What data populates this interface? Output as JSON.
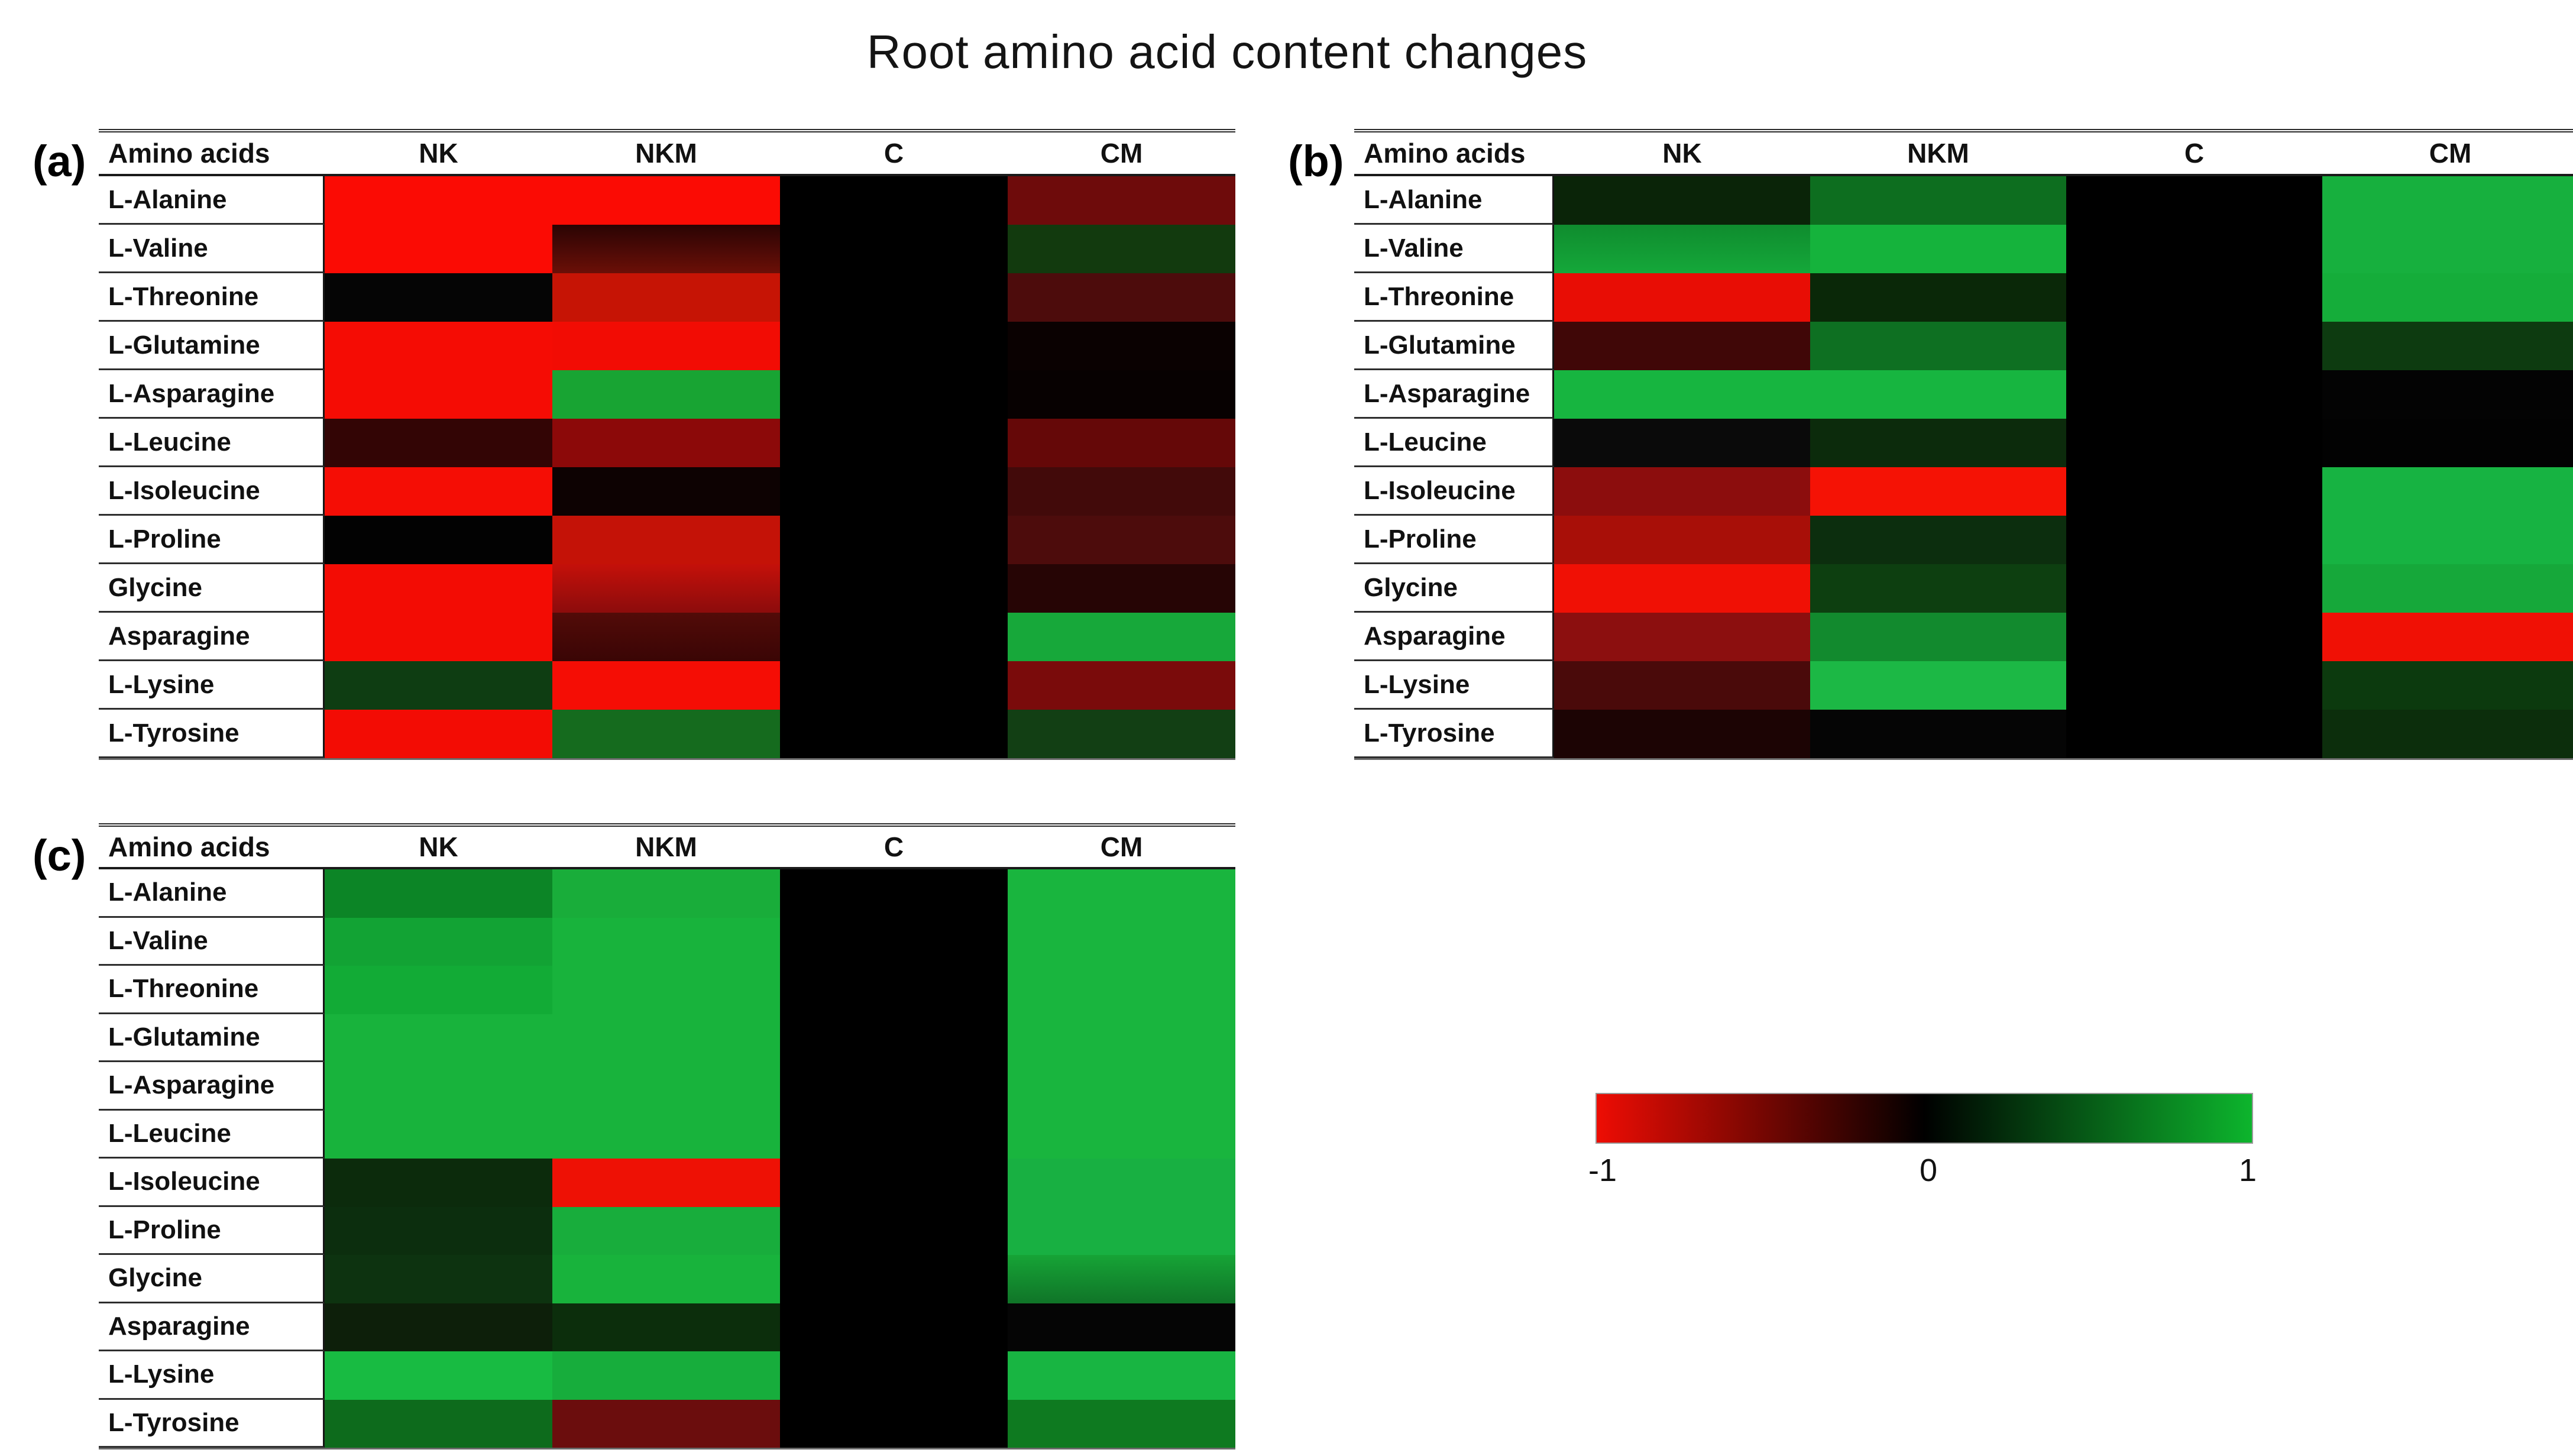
{
  "title": "Root amino acid content changes",
  "header": {
    "amino_acids": "Amino acids",
    "columns": [
      "NK",
      "NKM",
      "C",
      "CM"
    ]
  },
  "row_names": [
    "L-Alanine",
    "L-Valine",
    "L-Threonine",
    "L-Glutamine",
    "L-Asparagine",
    "L-Leucine",
    "L-Isoleucine",
    "L-Proline",
    "Glycine",
    "Asparagine",
    "L-Lysine",
    "L-Tyrosine"
  ],
  "colorbar": {
    "min_label": "-1",
    "mid_label": "0",
    "max_label": "1",
    "negative_color": "#ee0d04",
    "zero_color": "#000000",
    "positive_color": "#0db52d"
  },
  "panels": [
    {
      "id": "a",
      "label": "(a)",
      "cell_colors": [
        [
          "#fb0b04",
          "#fb0b04",
          "#000000",
          "#6e0b0b"
        ],
        [
          "#fb0b04",
          "#2a0404|#6b0f07",
          "#000000",
          "#123a0e"
        ],
        [
          "#050505",
          "#c61405",
          "#000000",
          "#4d0c0c"
        ],
        [
          "#f50c04",
          "#f20c04",
          "#000000",
          "#0a0101"
        ],
        [
          "#f50c04",
          "#18a433",
          "#000000",
          "#070101"
        ],
        [
          "#330505",
          "#8c0909",
          "#000000",
          "#650808"
        ],
        [
          "#f50d05",
          "#0d0202",
          "#000000",
          "#420a0a"
        ],
        [
          "#020202",
          "#c41207",
          "#000000",
          "#4d0c0c"
        ],
        [
          "#f30c04",
          "#c4100a|#8c0c0c",
          "#000000",
          "#260505"
        ],
        [
          "#f30c04",
          "#520b08|#3a0505",
          "#000000",
          "#17a83a"
        ],
        [
          "#0e3d12",
          "#f50d05",
          "#000000",
          "#7a0b0b"
        ],
        [
          "#f30c04",
          "#156b1e",
          "#000000",
          "#123f14"
        ]
      ]
    },
    {
      "id": "b",
      "label": "(b)",
      "cell_colors": [
        [
          "#0a2408",
          "#0d6e1f",
          "#000000",
          "#17b03e"
        ],
        [
          "#0f8c2e|#15a83a",
          "#15b33c",
          "#000000",
          "#17b03e"
        ],
        [
          "#e80d05",
          "#0a2808",
          "#000000",
          "#15ad3a"
        ],
        [
          "#400707",
          "#0e7022",
          "#000000",
          "#0d3b10"
        ],
        [
          "#17b540",
          "#17b540",
          "#000000",
          "#030303"
        ],
        [
          "#0a0a0a",
          "#0c2b0c",
          "#000000",
          "#020202"
        ],
        [
          "#8c0d0d",
          "#f51205",
          "#000000",
          "#17b342"
        ],
        [
          "#a80f08",
          "#0c2e0e",
          "#000000",
          "#17b342"
        ],
        [
          "#f01005",
          "#0d3f10",
          "#000000",
          "#16a83a"
        ],
        [
          "#8c0f0f",
          "#128a2e",
          "#000000",
          "#f01005"
        ],
        [
          "#4a0a0a",
          "#1cb845",
          "#000000",
          "#0c3a0e"
        ],
        [
          "#1c0404",
          "#050505",
          "#000000",
          "#0c2e0c"
        ]
      ]
    },
    {
      "id": "c",
      "label": "(c)",
      "cell_colors": [
        [
          "#0c8526",
          "#19ad3a",
          "#000000",
          "#19b53e"
        ],
        [
          "#12a334",
          "#18b33c",
          "#000000",
          "#19b53e"
        ],
        [
          "#12ab36",
          "#18b33c",
          "#000000",
          "#19b53e"
        ],
        [
          "#18b33c",
          "#18b33c",
          "#000000",
          "#19b53e"
        ],
        [
          "#18b33c",
          "#18b33c",
          "#000000",
          "#19b53e"
        ],
        [
          "#18b33c",
          "#18b33c",
          "#000000",
          "#19b53e"
        ],
        [
          "#0c2b0c",
          "#ee1105",
          "#000000",
          "#18b042"
        ],
        [
          "#0c2e0e",
          "#18ad3c",
          "#000000",
          "#18b042"
        ],
        [
          "#0d3310",
          "#18b33c",
          "#000000",
          "#16a436|#107428"
        ],
        [
          "#0d1f0a",
          "#0c2e0c",
          "#000000",
          "#050505"
        ],
        [
          "#18bb42",
          "#17ad3c",
          "#000000",
          "#18b542"
        ],
        [
          "#0d6b1c",
          "#6b0d0d",
          "#000000",
          "#0e7a20"
        ]
      ]
    }
  ],
  "chart_data": {
    "type": "heatmap",
    "title": "Root amino acid content changes",
    "colorscale": {
      "range": [
        -1,
        1
      ],
      "ticks": [
        "-1",
        "0",
        "1"
      ],
      "low": "red",
      "mid": "black",
      "high": "green"
    },
    "columns": [
      "NK",
      "NKM",
      "C",
      "CM"
    ],
    "rows": [
      "L-Alanine",
      "L-Valine",
      "L-Threonine",
      "L-Glutamine",
      "L-Asparagine",
      "L-Leucine",
      "L-Isoleucine",
      "L-Proline",
      "Glycine",
      "Asparagine",
      "L-Lysine",
      "L-Tyrosine"
    ],
    "panels": [
      {
        "panel": "(a)",
        "values_est": [
          [
            -1,
            -1,
            0,
            -0.45
          ],
          [
            -1,
            -0.3,
            0,
            0.3
          ],
          [
            0,
            -0.8,
            0,
            -0.3
          ],
          [
            -1,
            -0.95,
            0,
            0
          ],
          [
            -1,
            0.9,
            0,
            0
          ],
          [
            -0.2,
            -0.55,
            0,
            -0.4
          ],
          [
            -1,
            -0.05,
            0,
            -0.25
          ],
          [
            0,
            -0.8,
            0,
            -0.3
          ],
          [
            -1,
            -0.65,
            0,
            -0.15
          ],
          [
            -1,
            -0.3,
            0,
            0.9
          ],
          [
            0.35,
            -1,
            0,
            -0.5
          ],
          [
            -1,
            0.6,
            0,
            0.35
          ]
        ]
      },
      {
        "panel": "(b)",
        "values_est": [
          [
            0.2,
            0.6,
            0,
            0.95
          ],
          [
            0.85,
            0.95,
            0,
            0.95
          ],
          [
            -0.95,
            0.2,
            0,
            0.9
          ],
          [
            -0.25,
            0.6,
            0,
            0.3
          ],
          [
            0.95,
            0.95,
            0,
            0
          ],
          [
            0.05,
            0.25,
            0,
            0
          ],
          [
            -0.55,
            -1,
            0,
            0.95
          ],
          [
            -0.65,
            0.25,
            0,
            0.95
          ],
          [
            -1,
            0.35,
            0,
            0.9
          ],
          [
            -0.55,
            0.75,
            0,
            -1
          ],
          [
            -0.3,
            1,
            0,
            0.3
          ],
          [
            -0.1,
            0,
            0,
            0.25
          ]
        ]
      },
      {
        "panel": "(c)",
        "values_est": [
          [
            0.7,
            0.9,
            0,
            0.95
          ],
          [
            0.85,
            0.95,
            0,
            0.95
          ],
          [
            0.9,
            0.95,
            0,
            0.95
          ],
          [
            0.95,
            0.95,
            0,
            0.95
          ],
          [
            0.95,
            0.95,
            0,
            0.95
          ],
          [
            0.95,
            0.95,
            0,
            0.95
          ],
          [
            0.25,
            -1,
            0,
            0.95
          ],
          [
            0.25,
            0.9,
            0,
            0.95
          ],
          [
            0.3,
            0.95,
            0,
            0.65
          ],
          [
            0.15,
            0.25,
            0,
            0
          ],
          [
            1,
            0.9,
            0,
            0.95
          ],
          [
            0.55,
            -0.4,
            0,
            0.65
          ]
        ]
      }
    ]
  },
  "layout_labels": {
    "panel_a": "(a)",
    "panel_b": "(b)",
    "panel_c": "(c)"
  }
}
